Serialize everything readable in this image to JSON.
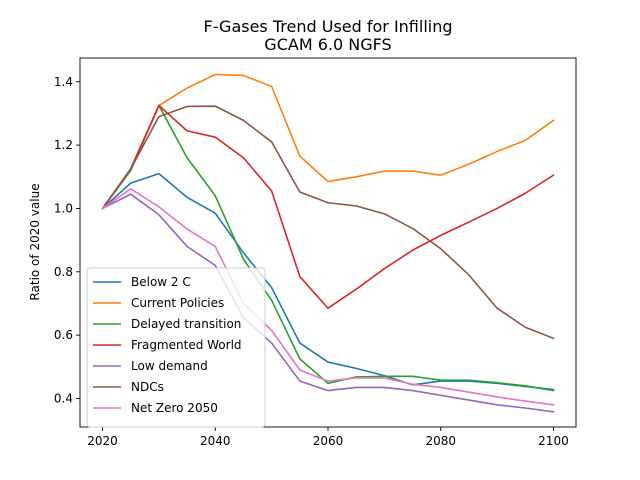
{
  "chart_data": {
    "type": "line",
    "title": "F-Gases Trend Used for Infilling",
    "subtitle": "GCAM 6.0 NGFS",
    "xlabel": "",
    "ylabel": "Ratio of 2020 value",
    "xlim": [
      2016,
      2104
    ],
    "ylim": [
      0.31,
      1.475
    ],
    "xticks": [
      2020,
      2040,
      2060,
      2080,
      2100
    ],
    "yticks": [
      0.4,
      0.6,
      0.8,
      1.0,
      1.2,
      1.4
    ],
    "xtick_labels": [
      "2020",
      "2040",
      "2060",
      "2080",
      "2100"
    ],
    "ytick_labels": [
      "0.4",
      "0.6",
      "0.8",
      "1.0",
      "1.2",
      "1.4"
    ],
    "grid": false,
    "legend_position": "lower-left",
    "x": [
      2020,
      2025,
      2030,
      2035,
      2040,
      2045,
      2050,
      2055,
      2060,
      2065,
      2070,
      2075,
      2080,
      2085,
      2090,
      2095,
      2100
    ],
    "series": [
      {
        "name": "Below 2 C",
        "color": "#1f77b4",
        "values": [
          1.0,
          1.08,
          1.11,
          1.035,
          0.985,
          0.86,
          0.75,
          0.575,
          0.515,
          0.495,
          0.472,
          0.443,
          0.455,
          0.455,
          0.448,
          0.438,
          0.428
        ]
      },
      {
        "name": "Current Policies",
        "color": "#ff7f0e",
        "values": [
          1.0,
          1.125,
          1.325,
          1.38,
          1.423,
          1.42,
          1.385,
          1.165,
          1.085,
          1.1,
          1.118,
          1.118,
          1.105,
          1.14,
          1.18,
          1.215,
          1.278
        ]
      },
      {
        "name": "Delayed transition",
        "color": "#2ca02c",
        "values": [
          1.0,
          1.12,
          1.325,
          1.16,
          1.04,
          0.84,
          0.71,
          0.525,
          0.448,
          0.468,
          0.47,
          0.47,
          0.458,
          0.458,
          0.45,
          0.44,
          0.425
        ]
      },
      {
        "name": "Fragmented World",
        "color": "#d62728",
        "values": [
          1.0,
          1.125,
          1.325,
          1.245,
          1.225,
          1.16,
          1.055,
          0.785,
          0.685,
          0.745,
          0.81,
          0.868,
          0.915,
          0.957,
          1.0,
          1.048,
          1.105
        ]
      },
      {
        "name": "Low demand",
        "color": "#9467bd",
        "values": [
          1.0,
          1.045,
          0.98,
          0.88,
          0.82,
          0.655,
          0.575,
          0.455,
          0.425,
          0.435,
          0.435,
          0.425,
          0.41,
          0.395,
          0.38,
          0.37,
          0.358
        ]
      },
      {
        "name": "NDCs",
        "color": "#8c564b",
        "values": [
          1.0,
          1.125,
          1.29,
          1.322,
          1.323,
          1.278,
          1.21,
          1.052,
          1.018,
          1.008,
          0.983,
          0.937,
          0.873,
          0.79,
          0.685,
          0.625,
          0.59
        ]
      },
      {
        "name": "Net Zero 2050",
        "color": "#e377c2",
        "values": [
          1.0,
          1.062,
          1.005,
          0.935,
          0.88,
          0.7,
          0.615,
          0.49,
          0.455,
          0.465,
          0.465,
          0.445,
          0.435,
          0.42,
          0.405,
          0.392,
          0.38
        ]
      }
    ]
  }
}
